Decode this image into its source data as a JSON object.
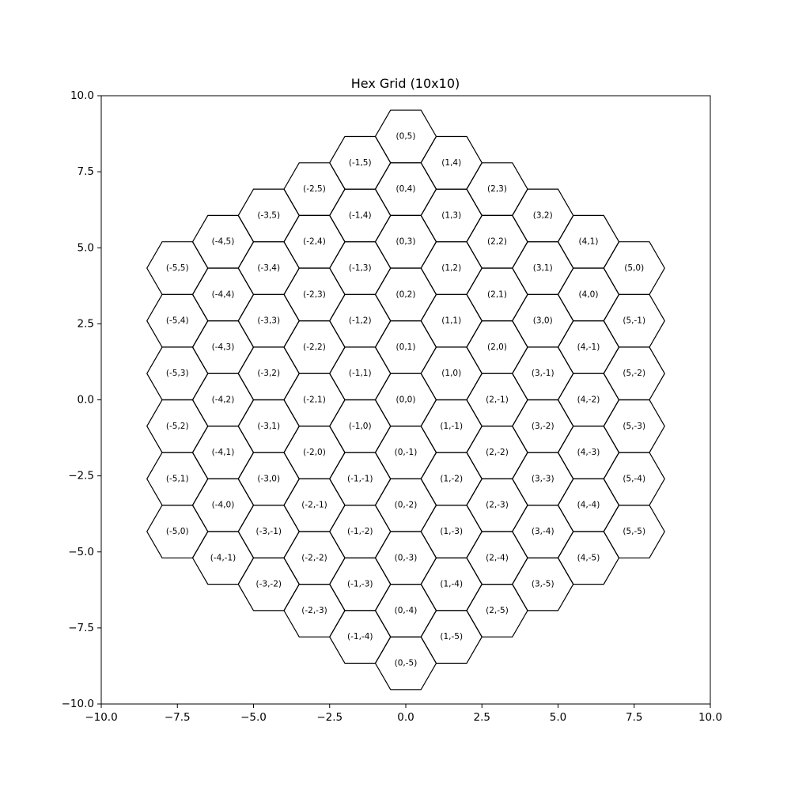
{
  "chart_data": {
    "type": "other",
    "title": "Hex Grid (10x10)",
    "xlabel": "",
    "ylabel": "",
    "xlim": [
      -10.0,
      10.0
    ],
    "ylim": [
      -10.0,
      10.0
    ],
    "grid": false,
    "x_ticks": [
      -10.0,
      -7.5,
      -5.0,
      -2.5,
      0.0,
      2.5,
      5.0,
      7.5,
      10.0
    ],
    "x_tick_labels": [
      "−10.0",
      "−7.5",
      "−5.0",
      "−2.5",
      "0.0",
      "2.5",
      "5.0",
      "7.5",
      "10.0"
    ],
    "y_ticks": [
      -10.0,
      -7.5,
      -5.0,
      -2.5,
      0.0,
      2.5,
      5.0,
      7.5,
      10.0
    ],
    "y_tick_labels": [
      "−10.0",
      "−7.5",
      "−5.0",
      "−2.5",
      "0.0",
      "2.5",
      "5.0",
      "7.5",
      "10.0"
    ],
    "hex_radius": 1.0,
    "hex_orientation": "flat-top",
    "q_range": [
      -5,
      5
    ],
    "r_range": [
      -5,
      5
    ],
    "constraint": "|q + r| <= 5",
    "label_format": "(q,r)",
    "cell_count": 91
  }
}
